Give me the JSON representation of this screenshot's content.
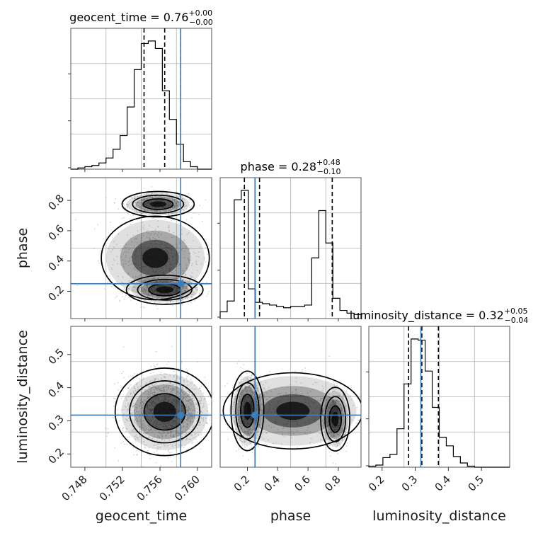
{
  "chart_data": {
    "type": "corner",
    "parameters": [
      "geocent_time",
      "phase",
      "luminosity_distance"
    ],
    "truths": {
      "geocent_time": 0.7582,
      "phase": 0.25,
      "luminosity_distance": 0.317
    },
    "colors": {
      "truth": "#3b7dbb",
      "line": "#000000",
      "grid": "#b0b0b0",
      "scatter": "#8c8c8c"
    },
    "ranges": {
      "geocent_time": [
        0.7465,
        0.7615
      ],
      "phase": [
        0.02,
        0.95
      ],
      "luminosity_distance": [
        0.16,
        0.585
      ]
    },
    "titles": [
      {
        "param": "geocent_time",
        "label": "geocent_time",
        "value": "0.76",
        "plus": "+0.00",
        "minus": "−0.00"
      },
      {
        "param": "phase",
        "label": "phase",
        "value": "0.28",
        "plus": "+0.48",
        "minus": "−0.10"
      },
      {
        "param": "luminosity_distance",
        "label": "luminosity_distance",
        "value": "0.32",
        "plus": "+0.05",
        "minus": "−0.04"
      }
    ],
    "axis_labels": {
      "x": [
        "geocent_time",
        "phase",
        "luminosity_distance"
      ],
      "y": [
        "phase",
        "luminosity_distance"
      ]
    },
    "ticks": {
      "geocent_time": [
        "0.748",
        "0.752",
        "0.756",
        "0.760"
      ],
      "phase": [
        "0.2",
        "0.4",
        "0.6",
        "0.8"
      ],
      "luminosity_distance": [
        "0.2",
        "0.3",
        "0.4",
        "0.5"
      ]
    },
    "histograms": {
      "geocent_time": {
        "edges_start": 0.7465,
        "bin_width": 0.00075,
        "counts": [
          0,
          1,
          2,
          3,
          5,
          9,
          16,
          27,
          50,
          80,
          101,
          103,
          97,
          63,
          40,
          20,
          6,
          2,
          0,
          0
        ]
      },
      "phase": {
        "edges_start": 0.02,
        "bin_width": 0.0465,
        "counts": [
          5,
          13,
          88,
          95,
          22,
          12,
          11,
          10,
          9,
          8,
          9,
          9,
          10,
          45,
          80,
          56,
          15,
          6,
          4,
          3
        ]
      },
      "luminosity_distance": {
        "edges_start": 0.16,
        "bin_width": 0.02125,
        "counts": [
          1,
          2,
          9,
          12,
          36,
          78,
          120,
          119,
          90,
          56,
          28,
          20,
          10,
          4,
          1,
          0,
          0,
          0,
          0,
          0
        ]
      }
    },
    "quantiles": {
      "geocent_time": [
        0.7543,
        0.7565,
        0.7582
      ],
      "phase": [
        0.18,
        0.28,
        0.76
      ],
      "luminosity_distance": [
        0.28,
        0.32,
        0.37
      ]
    },
    "pair_panels": [
      {
        "x": "geocent_time",
        "y": "phase",
        "blobs": [
          {
            "cx": 0.7558,
            "cy": 0.775,
            "sx": 0.0016,
            "sy": 0.035,
            "n": 700
          },
          {
            "cx": 0.7565,
            "cy": 0.21,
            "sx": 0.0017,
            "sy": 0.04,
            "n": 800
          },
          {
            "cx": 0.7555,
            "cy": 0.42,
            "sx": 0.0025,
            "sy": 0.12,
            "n": 450
          }
        ]
      },
      {
        "x": "geocent_time",
        "y": "luminosity_distance",
        "blobs": [
          {
            "cx": 0.7565,
            "cy": 0.327,
            "sx": 0.0022,
            "sy": 0.055,
            "n": 1600
          }
        ]
      },
      {
        "x": "phase",
        "y": "luminosity_distance",
        "blobs": [
          {
            "cx": 0.2,
            "cy": 0.33,
            "sx": 0.045,
            "sy": 0.05,
            "n": 700
          },
          {
            "cx": 0.78,
            "cy": 0.305,
            "sx": 0.04,
            "sy": 0.04,
            "n": 550
          },
          {
            "cx": 0.5,
            "cy": 0.33,
            "sx": 0.2,
            "sy": 0.05,
            "n": 300
          }
        ]
      }
    ]
  }
}
